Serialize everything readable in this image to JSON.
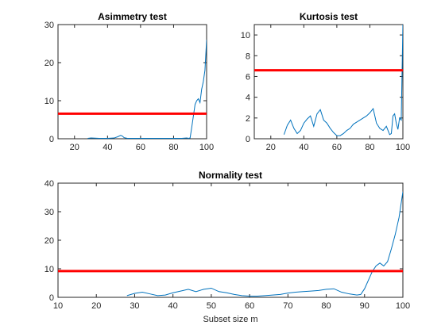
{
  "chart_data": [
    {
      "type": "line",
      "title": "Asimmetry test",
      "xlabel": "",
      "ylabel": "",
      "xlim": [
        10,
        100
      ],
      "ylim": [
        0,
        30
      ],
      "xticks": [
        20,
        40,
        60,
        80,
        100
      ],
      "yticks": [
        0,
        10,
        20,
        30
      ],
      "series": [
        {
          "color": "#0072BD",
          "x": [
            28,
            30,
            35,
            40,
            44,
            46,
            48,
            49,
            50,
            52,
            55,
            60,
            65,
            70,
            75,
            80,
            85,
            88,
            89,
            90,
            91,
            92,
            93,
            94,
            95,
            96,
            97,
            98,
            99,
            100
          ],
          "y": [
            0.1,
            0.2,
            0.1,
            0.1,
            0.2,
            0.5,
            0.9,
            0.7,
            0.3,
            0.1,
            0.1,
            0.1,
            0.1,
            0.1,
            0.1,
            0.1,
            0.1,
            0.2,
            0.1,
            0.2,
            3.0,
            6.0,
            9.0,
            10.0,
            10.5,
            9.5,
            13.0,
            15.0,
            18.0,
            26.0
          ]
        }
      ],
      "threshold": {
        "y": 6.6,
        "color": "#FF0000"
      }
    },
    {
      "type": "line",
      "title": "Kurtosis test",
      "xlabel": "",
      "ylabel": "",
      "xlim": [
        10,
        100
      ],
      "ylim": [
        0,
        11
      ],
      "xticks": [
        20,
        40,
        60,
        80,
        100
      ],
      "yticks": [
        0,
        2,
        4,
        6,
        8,
        10
      ],
      "series": [
        {
          "color": "#0072BD",
          "x": [
            28,
            30,
            32,
            34,
            36,
            38,
            40,
            42,
            44,
            46,
            48,
            50,
            52,
            54,
            56,
            58,
            60,
            62,
            64,
            66,
            68,
            70,
            72,
            74,
            76,
            78,
            80,
            82,
            84,
            86,
            88,
            90,
            92,
            93,
            94,
            95,
            96,
            97,
            98,
            99,
            100
          ],
          "y": [
            0.4,
            1.3,
            1.8,
            1.0,
            0.5,
            0.8,
            1.5,
            1.9,
            2.2,
            1.2,
            2.4,
            2.8,
            1.8,
            1.5,
            1.0,
            0.6,
            0.3,
            0.3,
            0.5,
            0.8,
            1.0,
            1.4,
            1.6,
            1.8,
            2.0,
            2.2,
            2.5,
            2.9,
            1.5,
            1.0,
            0.8,
            1.2,
            0.4,
            0.5,
            2.2,
            2.4,
            1.5,
            0.9,
            2.0,
            1.8,
            11.0
          ]
        }
      ],
      "threshold": {
        "y": 6.6,
        "color": "#FF0000"
      }
    },
    {
      "type": "line",
      "title": "Normality test",
      "xlabel": "Subset size m",
      "ylabel": "",
      "xlim": [
        10,
        100
      ],
      "ylim": [
        0,
        40
      ],
      "xticks": [
        10,
        20,
        30,
        40,
        50,
        60,
        70,
        80,
        90,
        100
      ],
      "yticks": [
        0,
        10,
        20,
        30,
        40
      ],
      "series": [
        {
          "color": "#0072BD",
          "x": [
            28,
            30,
            32,
            34,
            36,
            38,
            40,
            42,
            44,
            46,
            48,
            50,
            52,
            54,
            56,
            58,
            60,
            62,
            64,
            66,
            68,
            70,
            72,
            74,
            76,
            78,
            80,
            82,
            84,
            86,
            88,
            89,
            90,
            91,
            92,
            93,
            94,
            95,
            96,
            97,
            98,
            99,
            100
          ],
          "y": [
            0.6,
            1.4,
            1.8,
            1.2,
            0.6,
            0.8,
            1.6,
            2.2,
            2.8,
            2.0,
            2.8,
            3.2,
            2.0,
            1.6,
            1.0,
            0.6,
            0.4,
            0.4,
            0.6,
            0.8,
            1.0,
            1.5,
            1.8,
            2.0,
            2.2,
            2.4,
            2.8,
            3.0,
            1.8,
            1.2,
            0.8,
            1.0,
            3.0,
            6.0,
            9.0,
            11.0,
            12.0,
            11.0,
            12.5,
            17.0,
            22.0,
            28.0,
            37.0
          ]
        }
      ],
      "threshold": {
        "y": 9.2,
        "color": "#FF0000"
      }
    }
  ]
}
